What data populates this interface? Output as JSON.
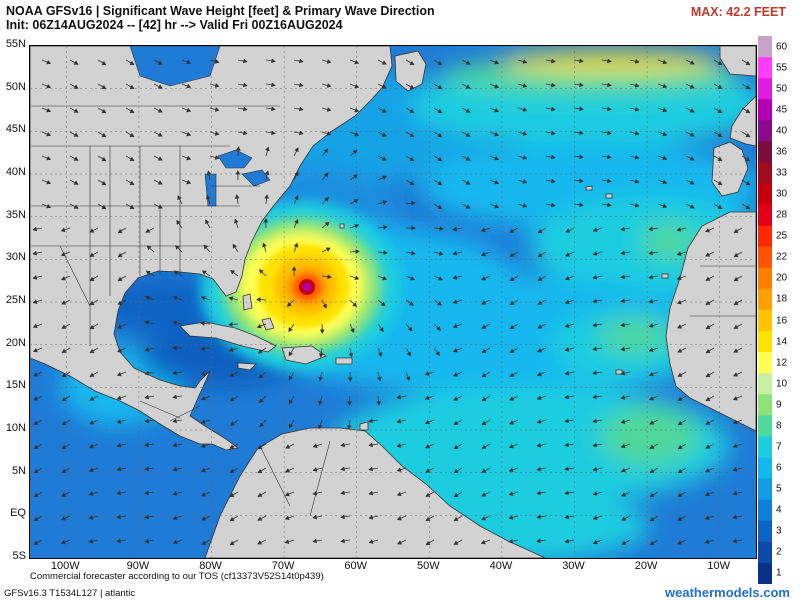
{
  "header": {
    "title": "NOAA GFSv16 | Significant Wave Height [feet] & Primary Wave Direction",
    "init": "Init: 06Z14AUG2024 -- [42] hr --> Valid Fri 00Z16AUG2024",
    "max": "MAX: 42.2 FEET"
  },
  "map": {
    "lon_range": [
      -105,
      -5
    ],
    "lat_range": [
      -5,
      55
    ],
    "lat_labels": [
      "55N",
      "50N",
      "45N",
      "40N",
      "35N",
      "30N",
      "25N",
      "20N",
      "15N",
      "10N",
      "5N",
      "EQ",
      "5S"
    ],
    "lon_labels": [
      "100W",
      "90W",
      "80W",
      "70W",
      "60W",
      "50W",
      "40W",
      "30W",
      "20W",
      "10W"
    ],
    "hurricane_center": {
      "lon": -68,
      "lat": 27
    },
    "hurricane_peak_ft": 42.2,
    "colors": {
      "land": "#d2d2d2",
      "border": "#333333",
      "ocean_base": "#1f7bd6"
    }
  },
  "colorbar": {
    "labels": [
      "60",
      "55",
      "50",
      "45",
      "40",
      "36",
      "33",
      "30",
      "28",
      "25",
      "22",
      "20",
      "18",
      "16",
      "14",
      "12",
      "10",
      "9",
      "8",
      "7",
      "6",
      "5",
      "4",
      "3",
      "2",
      "1"
    ],
    "colors": [
      "#c8a2c8",
      "#ff3dff",
      "#e21de2",
      "#b400b4",
      "#8b0a8b",
      "#7a0f3d",
      "#9e0b21",
      "#c4000f",
      "#e1001a",
      "#ff2a00",
      "#ff5500",
      "#ff7f00",
      "#ffa200",
      "#ffc300",
      "#ffe100",
      "#ffff55",
      "#c8f0a0",
      "#8ce37c",
      "#4fd89a",
      "#1ecde0",
      "#14b7ee",
      "#129be6",
      "#0f7fd9",
      "#0d63c4",
      "#0f4aa8",
      "#0a318a"
    ]
  },
  "footer": {
    "tos": "Commercial forecaster according to our TOS (cf13373V52S14t0p439)",
    "model": "GFSv16.3 T1534L127 | atlantic",
    "brand": "weathermodels.com"
  }
}
